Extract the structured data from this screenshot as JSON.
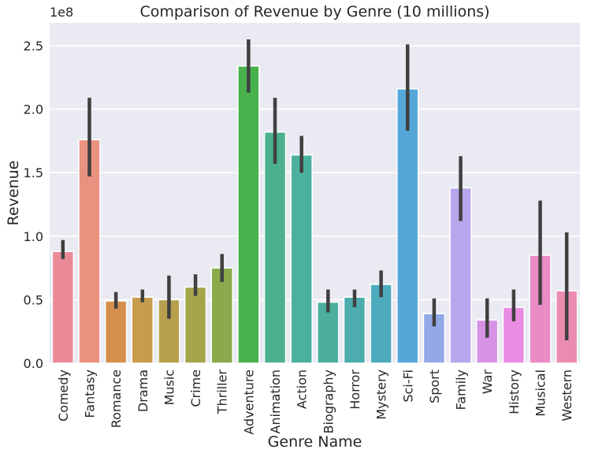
{
  "chart_data": {
    "type": "bar",
    "title": "Comparison of Revenue by Genre (10 millions)",
    "xlabel": "Genre Name",
    "ylabel": "Revenue",
    "y_offset_label": "1e8",
    "ylim": [
      0,
      2.68
    ],
    "yticks": [
      "0.0",
      "0.5",
      "1.0",
      "1.5",
      "2.0",
      "2.5"
    ],
    "grid": true,
    "categories": [
      "Comedy",
      "Fantasy",
      "Romance",
      "Drama",
      "Music",
      "Crime",
      "Thriller",
      "Adventure",
      "Animation",
      "Action",
      "Biography",
      "Horror",
      "Mystery",
      "Sci-Fi",
      "Sport",
      "Family",
      "War",
      "History",
      "Musical",
      "Western"
    ],
    "values": [
      0.88,
      1.76,
      0.49,
      0.52,
      0.5,
      0.6,
      0.75,
      2.34,
      1.82,
      1.64,
      0.48,
      0.52,
      0.62,
      2.16,
      0.39,
      1.38,
      0.34,
      0.44,
      0.85,
      0.57
    ],
    "error_low": [
      0.82,
      1.47,
      0.43,
      0.48,
      0.35,
      0.53,
      0.64,
      2.13,
      1.57,
      1.5,
      0.4,
      0.44,
      0.52,
      1.83,
      0.29,
      1.12,
      0.2,
      0.33,
      0.46,
      0.18
    ],
    "error_high": [
      0.97,
      2.09,
      0.56,
      0.58,
      0.69,
      0.7,
      0.86,
      2.55,
      2.09,
      1.79,
      0.58,
      0.58,
      0.73,
      2.51,
      0.51,
      1.63,
      0.51,
      0.58,
      1.28,
      1.03
    ],
    "colors": [
      "#ea8a98",
      "#e9927f",
      "#d5904d",
      "#c69c4d",
      "#b7a04d",
      "#a5a64c",
      "#8aaa4c",
      "#48b14c",
      "#4bb18f",
      "#4bb09e",
      "#4cae9d",
      "#4dadae",
      "#4eabbd",
      "#56a7d8",
      "#93a8e6",
      "#b8a6ec",
      "#d692e5",
      "#e98de3",
      "#ea8bc5",
      "#ea8baf"
    ],
    "error_color": "#404040",
    "background": "#eaeaf2",
    "grid_color": "#ffffff"
  }
}
